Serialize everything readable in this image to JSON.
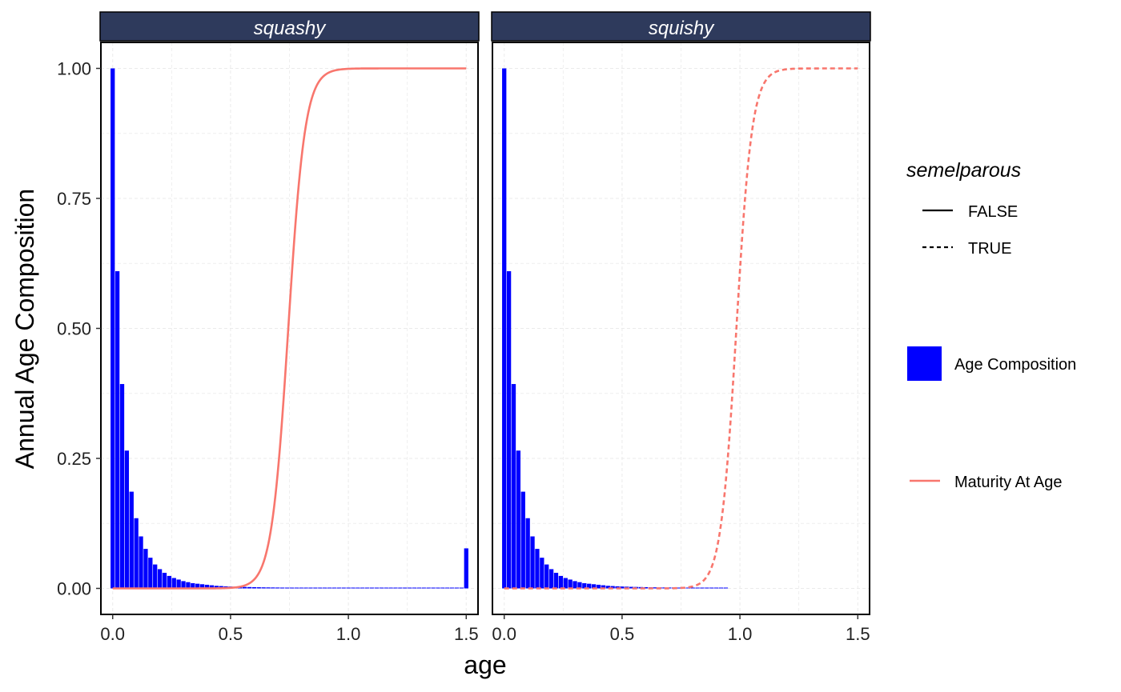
{
  "chart_data": {
    "type": "bar",
    "ylabel": "Annual Age Composition",
    "xlabel": "age",
    "xlim": [
      -0.05,
      1.55
    ],
    "ylim": [
      -0.05,
      1.05
    ],
    "x_ticks": [
      0.0,
      0.5,
      1.0,
      1.5
    ],
    "x_tick_labels": [
      "0.0",
      "0.5",
      "1.0",
      "1.5"
    ],
    "y_ticks": [
      0.0,
      0.25,
      0.5,
      0.75,
      1.0
    ],
    "y_tick_labels": [
      "0.00",
      "0.25",
      "0.50",
      "0.75",
      "1.00"
    ],
    "grid": true,
    "bar_width": 0.018,
    "panels": [
      {
        "strip": "squashy",
        "semelparous": "FALSE",
        "age_composition": {
          "x": [
            0.0,
            0.02,
            0.04,
            0.06,
            0.08,
            0.1,
            0.12,
            0.14,
            0.16,
            0.18,
            0.2,
            0.22,
            0.24,
            0.26,
            0.28,
            0.3,
            0.32,
            0.34,
            0.36,
            0.38,
            0.4,
            0.42,
            0.44,
            0.46,
            0.48,
            0.5,
            0.52,
            0.54,
            0.56,
            0.58,
            0.6,
            0.62,
            0.64,
            0.66,
            0.68,
            0.7,
            0.72,
            0.74,
            0.76,
            0.78,
            0.8,
            0.82,
            0.84,
            0.86,
            0.88,
            0.9,
            0.92,
            0.94,
            0.96,
            0.98,
            1.0,
            1.02,
            1.04,
            1.06,
            1.08,
            1.1,
            1.12,
            1.14,
            1.16,
            1.18,
            1.2,
            1.22,
            1.24,
            1.26,
            1.28,
            1.3,
            1.32,
            1.34,
            1.36,
            1.38,
            1.4,
            1.42,
            1.44,
            1.46,
            1.48,
            1.5
          ],
          "values": [
            1.0,
            0.61,
            0.393,
            0.265,
            0.186,
            0.135,
            0.1,
            0.076,
            0.059,
            0.046,
            0.037,
            0.03,
            0.024,
            0.02,
            0.017,
            0.014,
            0.012,
            0.01,
            0.009,
            0.008,
            0.007,
            0.006,
            0.005,
            0.0045,
            0.004,
            0.0036,
            0.0033,
            0.003,
            0.0028,
            0.0026,
            0.0024,
            0.0022,
            0.002,
            0.0019,
            0.0018,
            0.0017,
            0.0016,
            0.0015,
            0.0014,
            0.0013,
            0.0012,
            0.0012,
            0.0011,
            0.0011,
            0.001,
            0.001,
            0.001,
            0.001,
            0.001,
            0.001,
            0.001,
            0.001,
            0.001,
            0.001,
            0.001,
            0.001,
            0.001,
            0.001,
            0.001,
            0.001,
            0.001,
            0.001,
            0.001,
            0.001,
            0.001,
            0.001,
            0.001,
            0.001,
            0.001,
            0.001,
            0.001,
            0.001,
            0.001,
            0.001,
            0.001,
            0.077
          ]
        },
        "maturity_at_age": {
          "logistic_midpoint": 0.745,
          "logistic_slope": 28.0,
          "x_range": [
            0.0,
            1.5
          ]
        }
      },
      {
        "strip": "squishy",
        "semelparous": "TRUE",
        "age_composition": {
          "x": [
            0.0,
            0.02,
            0.04,
            0.06,
            0.08,
            0.1,
            0.12,
            0.14,
            0.16,
            0.18,
            0.2,
            0.22,
            0.24,
            0.26,
            0.28,
            0.3,
            0.32,
            0.34,
            0.36,
            0.38,
            0.4,
            0.42,
            0.44,
            0.46,
            0.48,
            0.5,
            0.52,
            0.54,
            0.56,
            0.58,
            0.6,
            0.62,
            0.64,
            0.66,
            0.68,
            0.7,
            0.72,
            0.74,
            0.76,
            0.78,
            0.8,
            0.82,
            0.84,
            0.86,
            0.88,
            0.9,
            0.92,
            0.94
          ],
          "values": [
            1.0,
            0.61,
            0.393,
            0.265,
            0.186,
            0.135,
            0.1,
            0.076,
            0.059,
            0.046,
            0.037,
            0.03,
            0.024,
            0.02,
            0.017,
            0.014,
            0.012,
            0.01,
            0.009,
            0.008,
            0.007,
            0.006,
            0.005,
            0.0045,
            0.004,
            0.0036,
            0.0033,
            0.003,
            0.0028,
            0.0026,
            0.0024,
            0.0022,
            0.002,
            0.0019,
            0.0018,
            0.0017,
            0.0016,
            0.0015,
            0.0014,
            0.0013,
            0.0012,
            0.0012,
            0.0011,
            0.0011,
            0.001,
            0.001,
            0.001,
            0.001
          ]
        },
        "maturity_at_age": {
          "logistic_midpoint": 0.985,
          "logistic_slope": 30.0,
          "x_range": [
            0.0,
            1.5
          ]
        }
      }
    ],
    "legend": {
      "placement": "right",
      "linetype_title": "semelparous",
      "linetype_entries": [
        {
          "label": "FALSE",
          "dash": "solid"
        },
        {
          "label": "TRUE",
          "dash": "dashed"
        }
      ],
      "fill_entries": [
        {
          "label": "Age Composition",
          "color": "#0000FF"
        }
      ],
      "color_entries": [
        {
          "label": "Maturity At Age",
          "color": "#F8766D"
        }
      ]
    },
    "colors": {
      "bars": "#0000FF",
      "maturity_line": "#F8766D",
      "strip_bg": "#2E3A5C",
      "grid": "#EBEBEB"
    }
  }
}
